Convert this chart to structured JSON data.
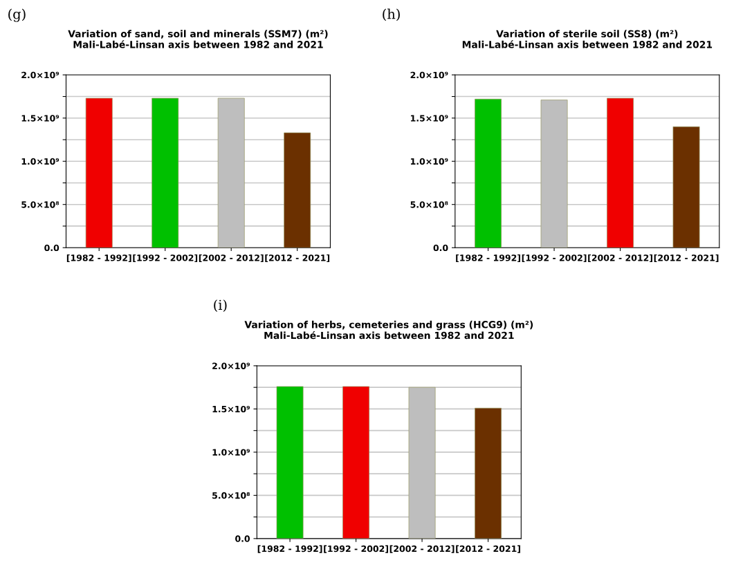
{
  "chart_data": [
    {
      "type": "bar",
      "title": "Variation of sand, soil and minerals (SSM7) (m²)",
      "subtitle": "Mali-Labé-Linsan axis between 1982 and 2021",
      "annotations": [
        "(g)"
      ],
      "categories": [
        "[1982 - 1992]",
        "[1992 - 2002]",
        "[2002 - 2012]",
        "[2012 - 2021]"
      ],
      "values": [
        1730000000,
        1730000000,
        1730000000,
        1330000000
      ],
      "colors": [
        "#f00000",
        "#00c000",
        "#bebebe",
        "#6b3000"
      ],
      "ylim": [
        0,
        2000000000
      ],
      "yticks": [
        {
          "value": 0,
          "label": "0.0"
        },
        {
          "value": 250000000,
          "label": null
        },
        {
          "value": 500000000,
          "label": "5.0×10⁸"
        },
        {
          "value": 750000000,
          "label": null
        },
        {
          "value": 1000000000,
          "label": "1.0×10⁹"
        },
        {
          "value": 1250000000,
          "label": null
        },
        {
          "value": 1500000000,
          "label": "1.5×10⁹"
        },
        {
          "value": 1750000000,
          "label": null
        },
        {
          "value": 2000000000,
          "label": "2.0×10⁹"
        }
      ],
      "grid": "y"
    },
    {
      "type": "bar",
      "title": "Variation of sterile soil (SS8) (m²)",
      "subtitle": "Mali-Labé-Linsan axis between 1982 and 2021",
      "annotations": [
        "(h)"
      ],
      "categories": [
        "[1982 - 1992]",
        "[1992 - 2002]",
        "[2002 - 2012]",
        "[2012 - 2021]"
      ],
      "values": [
        1720000000,
        1710000000,
        1730000000,
        1400000000
      ],
      "colors": [
        "#00c000",
        "#bebebe",
        "#f00000",
        "#6b3000"
      ],
      "ylim": [
        0,
        2000000000
      ],
      "yticks": [
        {
          "value": 0,
          "label": "0.0"
        },
        {
          "value": 250000000,
          "label": null
        },
        {
          "value": 500000000,
          "label": "5.0×10⁸"
        },
        {
          "value": 750000000,
          "label": null
        },
        {
          "value": 1000000000,
          "label": "1.0×10⁹"
        },
        {
          "value": 1250000000,
          "label": null
        },
        {
          "value": 1500000000,
          "label": "1.5×10⁹"
        },
        {
          "value": 1750000000,
          "label": null
        },
        {
          "value": 2000000000,
          "label": "2.0×10⁹"
        }
      ],
      "grid": "y"
    },
    {
      "type": "bar",
      "title": "Variation of herbs, cemeteries and grass (HCG9) (m²)",
      "subtitle": "Mali-Labé-Linsan axis between 1982 and 2021",
      "annotations": [
        "(i)"
      ],
      "categories": [
        "[1982 - 1992]",
        "[1992 - 2002]",
        "[2002 - 2012]",
        "[2012 - 2021]"
      ],
      "values": [
        1760000000,
        1760000000,
        1750000000,
        1510000000
      ],
      "colors": [
        "#00c000",
        "#f00000",
        "#bebebe",
        "#6b3000"
      ],
      "ylim": [
        0,
        2000000000
      ],
      "yticks": [
        {
          "value": 0,
          "label": "0.0"
        },
        {
          "value": 250000000,
          "label": null
        },
        {
          "value": 500000000,
          "label": "5.0×10⁸"
        },
        {
          "value": 750000000,
          "label": null
        },
        {
          "value": 1000000000,
          "label": "1.0×10⁹"
        },
        {
          "value": 1250000000,
          "label": null
        },
        {
          "value": 1500000000,
          "label": "1.5×10⁹"
        },
        {
          "value": 1750000000,
          "label": null
        },
        {
          "value": 2000000000,
          "label": "2.0×10⁹"
        }
      ],
      "grid": "y"
    }
  ]
}
